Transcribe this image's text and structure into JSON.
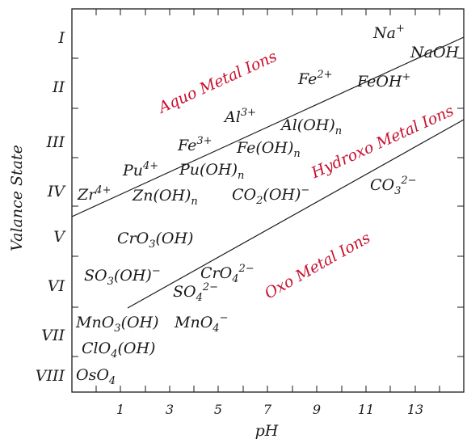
{
  "axes": {
    "xlabel": "pH",
    "ylabel": "Valance State",
    "xticks": [
      "1",
      "3",
      "5",
      "7",
      "9",
      "11",
      "13"
    ],
    "yticks": [
      "I",
      "II",
      "III",
      "IV",
      "V",
      "VI",
      "VII",
      "VIII"
    ]
  },
  "regions": {
    "aquo": "Aquo Metal Ions",
    "hydroxo": "Hydroxo Metal Ions",
    "oxo": "Oxo Metal Ions"
  },
  "colors": {
    "region_text": "#c8102e",
    "ink": "#1a1a1a"
  },
  "species": {
    "na": {
      "b": "Na",
      "sup": "+"
    },
    "naoh": {
      "b": "NaOH"
    },
    "feoh": {
      "b": "FeOH",
      "sup": "+"
    },
    "fe2": {
      "b": "Fe",
      "sup": "2+"
    },
    "al3": {
      "b": "Al",
      "sup": "3+"
    },
    "aloh": {
      "b": "Al(OH)",
      "sub": "n"
    },
    "fe3": {
      "b": "Fe",
      "sup": "3+"
    },
    "feoh_n": {
      "b": "Fe(OH)",
      "sub": "n"
    },
    "pu4": {
      "b": "Pu",
      "sup": "4+"
    },
    "puoh": {
      "b": "Pu(OH)",
      "sub": "n"
    },
    "zr4": {
      "b": "Zr",
      "sup": "4+"
    },
    "znoh": {
      "b": "Zn(OH)",
      "sub": "n"
    },
    "co2oh": {
      "b": "CO",
      "sub": "2",
      "b2": "(OH)",
      "sup": "−"
    },
    "co3": {
      "b": "CO",
      "sub": "3",
      "sup": "2−"
    },
    "cro3oh": {
      "b": "CrO",
      "sub": "3",
      "b2": "(OH)"
    },
    "so3oh": {
      "b": "SO",
      "sub": "3",
      "b2": "(OH)",
      "sup": "−"
    },
    "cro4": {
      "b": "CrO",
      "sub": "4",
      "sup": "2−"
    },
    "so4": {
      "b": "SO",
      "sub": "4",
      "sup": "2−"
    },
    "mno3oh": {
      "b": "MnO",
      "sub": "3",
      "b2": "(OH)"
    },
    "mno4": {
      "b": "MnO",
      "sub": "4",
      "sup": "−"
    },
    "clo4oh": {
      "b": "ClO",
      "sub": "4",
      "b2": "(OH)"
    },
    "oso4": {
      "b": "OsO",
      "sub": "4"
    }
  }
}
